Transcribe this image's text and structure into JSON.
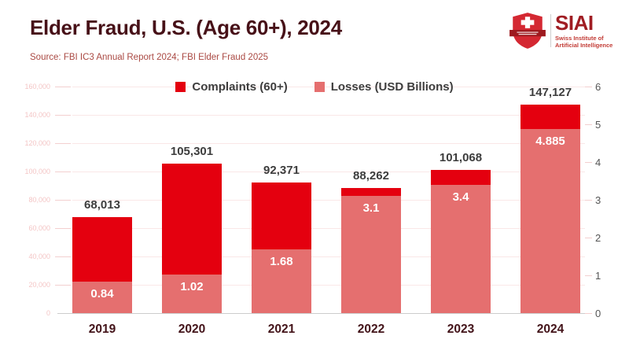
{
  "header": {
    "title": "Elder Fraud, U.S. (Age 60+), 2024",
    "source": "Source: FBI IC3 Annual Report 2024; FBI Elder Fraud 2025",
    "logo": {
      "name": "SIAI",
      "tagline_line1": "Swiss Institute of",
      "tagline_line2": "Artificial Intelligence"
    }
  },
  "colors": {
    "complaints": "#e4000f",
    "losses": "#e56f6f",
    "title_text": "#471118",
    "source_text": "#aa4943",
    "gridline": "#fae7e7",
    "left_axis_label": "#f4c6c6",
    "right_axis_label": "#565656",
    "value_label": "#3d3d3d",
    "loss_label": "#ffffff",
    "year_label": "#431319",
    "baseline": "#cccccc"
  },
  "chart_data": {
    "type": "bar",
    "title": "Elder Fraud, U.S. (Age 60+), 2024",
    "categories": [
      "2019",
      "2020",
      "2021",
      "2022",
      "2023",
      "2024"
    ],
    "series": [
      {
        "name": "Complaints (60+)",
        "axis": "left",
        "values": [
          68013,
          105301,
          92371,
          88262,
          101068,
          147127
        ],
        "labels": [
          "68,013",
          "105,301",
          "92,371",
          "88,262",
          "101,068",
          "147,127"
        ]
      },
      {
        "name": "Losses (USD Billions)",
        "axis": "right",
        "values": [
          0.84,
          1.02,
          1.68,
          3.1,
          3.4,
          4.885
        ],
        "labels": [
          "0.84",
          "1.02",
          "1.68",
          "3.1",
          "3.4",
          "4.885"
        ]
      }
    ],
    "left_axis": {
      "min": 0,
      "max": 160000,
      "step": 20000,
      "ticks": [
        "160,000",
        "140,000",
        "120,000",
        "100,000",
        "80,000",
        "60,000",
        "40,000",
        "20,000",
        "0"
      ]
    },
    "right_axis": {
      "min": 0,
      "max": 6,
      "step": 1,
      "ticks": [
        "6",
        "5",
        "4",
        "3",
        "2",
        "1",
        "0"
      ]
    },
    "legend_position": "top-center",
    "grid": true
  }
}
